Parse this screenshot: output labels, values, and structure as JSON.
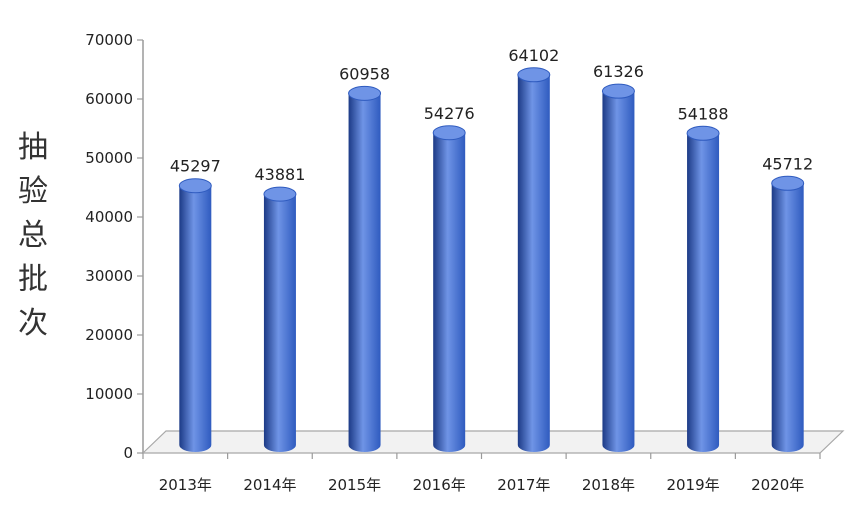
{
  "chart_data": {
    "type": "bar",
    "title": "",
    "xlabel": "",
    "ylabel": "抽验总批次",
    "categories": [
      "2013年",
      "2014年",
      "2015年",
      "2016年",
      "2017年",
      "2018年",
      "2019年",
      "2020年"
    ],
    "values": [
      45297,
      43881,
      60958,
      54276,
      64102,
      61326,
      54188,
      45712
    ],
    "ylim": [
      0,
      70000
    ],
    "yticks": [
      "0",
      "10000",
      "20000",
      "30000",
      "40000",
      "50000",
      "60000",
      "70000"
    ],
    "grid": false,
    "legend": "none",
    "bar_color": "#2f5bbf",
    "bar_highlight": "#6f94e6",
    "bar_shadow": "#1c3a86"
  }
}
